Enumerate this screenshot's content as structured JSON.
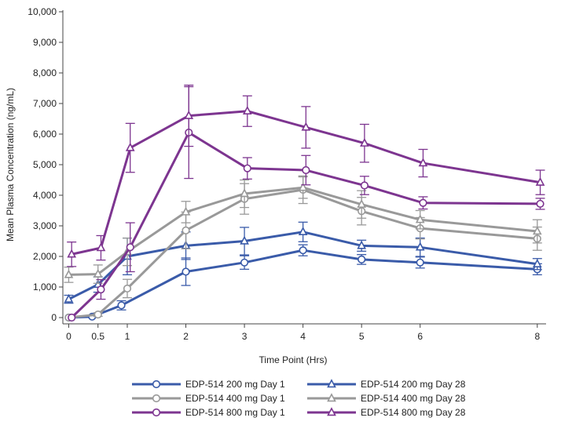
{
  "chart_data": {
    "type": "line",
    "title": "",
    "xlabel": "Time Point (Hrs)",
    "ylabel": "Mean Plasma Concentration (ng/mL)",
    "ylim": [
      0,
      10000
    ],
    "xlim": [
      -0.1,
      8.15
    ],
    "x_ticks": [
      0,
      0.5,
      1,
      2,
      3,
      4,
      5,
      6,
      8
    ],
    "x_tick_labels": [
      "0",
      "0.5",
      "1",
      "2",
      "3",
      "4",
      "5",
      "6",
      "8"
    ],
    "y_ticks": [
      0,
      1000,
      2000,
      3000,
      4000,
      5000,
      6000,
      7000,
      8000,
      9000,
      10000
    ],
    "y_tick_labels": [
      "0",
      "1,000",
      "2,000",
      "3,000",
      "4,000",
      "5,000",
      "6,000",
      "7,000",
      "8,000",
      "9,000",
      "10,000"
    ],
    "x": [
      0,
      0.5,
      1,
      2,
      3,
      4,
      5,
      6,
      8
    ],
    "series": [
      {
        "name": "EDP-514 200 mg Day 1",
        "color": "#3a5ba9",
        "marker": "circle",
        "x": [
          0,
          0.4,
          0.9,
          2,
          3,
          4,
          5,
          6,
          8
        ],
        "values": [
          0,
          30,
          400,
          1500,
          1800,
          2200,
          1900,
          1800,
          1580
        ],
        "errors": [
          0,
          20,
          150,
          450,
          220,
          180,
          160,
          180,
          180
        ]
      },
      {
        "name": "EDP-514 200 mg Day 28",
        "color": "#3a5ba9",
        "marker": "triangle",
        "x": [
          0,
          0.5,
          1,
          2,
          3,
          4,
          5,
          6,
          8
        ],
        "values": [
          600,
          1080,
          2000,
          2350,
          2500,
          2800,
          2350,
          2300,
          1750
        ],
        "errors": [
          130,
          250,
          600,
          450,
          450,
          320,
          180,
          300,
          180
        ]
      },
      {
        "name": "EDP-514 400 mg Day 1",
        "color": "#999999",
        "marker": "circle",
        "x": [
          0,
          0.5,
          1,
          2,
          3,
          4,
          5,
          6,
          8
        ],
        "values": [
          0,
          100,
          950,
          2850,
          3880,
          4180,
          3480,
          2920,
          2580
        ],
        "errors": [
          0,
          60,
          300,
          600,
          500,
          450,
          450,
          350,
          380
        ]
      },
      {
        "name": "EDP-514 400 mg Day 28",
        "color": "#999999",
        "marker": "triangle",
        "x": [
          0,
          0.5,
          1,
          2,
          3,
          4,
          5,
          6,
          8
        ],
        "values": [
          1400,
          1420,
          2150,
          3450,
          4050,
          4250,
          3700,
          3200,
          2820
        ],
        "errors": [
          250,
          300,
          450,
          350,
          450,
          350,
          450,
          300,
          380
        ]
      },
      {
        "name": "EDP-514 800 mg Day 1",
        "color": "#7d3590",
        "marker": "circle",
        "x": [
          0.05,
          0.55,
          1.05,
          2.05,
          3.05,
          4.05,
          5.05,
          6.05,
          8.05
        ],
        "values": [
          0,
          920,
          2300,
          6050,
          4880,
          4820,
          4320,
          3750,
          3720
        ],
        "errors": [
          0,
          320,
          800,
          1500,
          350,
          480,
          300,
          200,
          180
        ]
      },
      {
        "name": "EDP-514 800 mg Day 28",
        "color": "#7d3590",
        "marker": "triangle",
        "x": [
          0.05,
          0.55,
          1.05,
          2.05,
          3.05,
          4.05,
          5.05,
          6.05,
          8.05
        ],
        "values": [
          2070,
          2280,
          5550,
          6600,
          6750,
          6220,
          5700,
          5050,
          4420
        ],
        "errors": [
          400,
          400,
          800,
          1000,
          500,
          680,
          620,
          450,
          400
        ]
      }
    ],
    "legend": {
      "placement": "bottom",
      "columns": 2,
      "order": [
        "EDP-514 200 mg Day 1",
        "EDP-514 200 mg Day 28",
        "EDP-514 400 mg Day 1",
        "EDP-514 400 mg Day 28",
        "EDP-514 800 mg Day 1",
        "EDP-514 800 mg Day 28"
      ]
    },
    "grid": false
  }
}
